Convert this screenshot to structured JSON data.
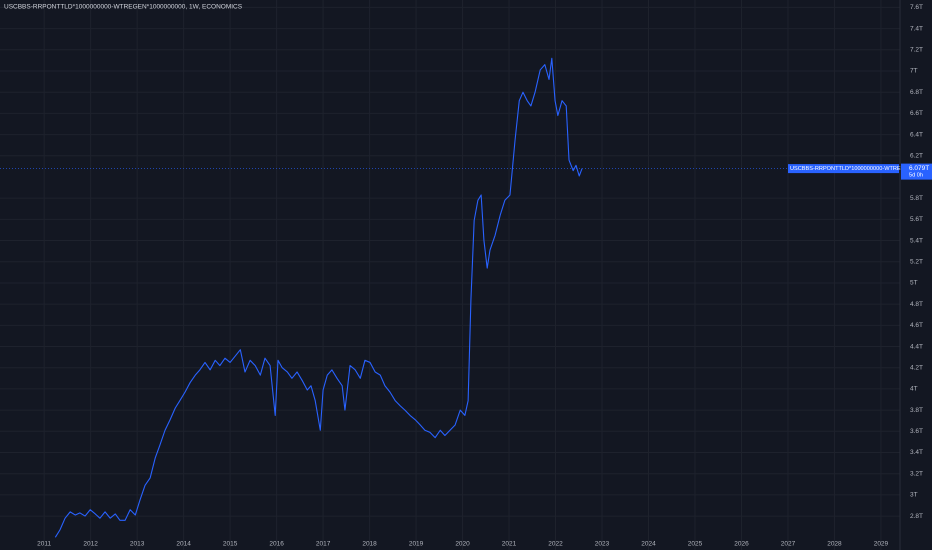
{
  "chart_data": {
    "type": "line",
    "title": "USCBBS-RRPONTTLD*1000000000-WTREGEN*1000000000, 1W, ECONOMICS",
    "xlim": [
      2010.05,
      2029.41
    ],
    "xticks": [
      2011,
      2012,
      2013,
      2014,
      2015,
      2016,
      2017,
      2018,
      2019,
      2020,
      2021,
      2022,
      2023,
      2024,
      2025,
      2026,
      2027,
      2028,
      2029
    ],
    "ylim": [
      2.48,
      7.67
    ],
    "yticks": [
      {
        "value": 2.8,
        "label": "2.8T"
      },
      {
        "value": 3,
        "label": "3T"
      },
      {
        "value": 3.2,
        "label": "3.2T"
      },
      {
        "value": 3.4,
        "label": "3.4T"
      },
      {
        "value": 3.6,
        "label": "3.6T"
      },
      {
        "value": 3.8,
        "label": "3.8T"
      },
      {
        "value": 4,
        "label": "4T"
      },
      {
        "value": 4.2,
        "label": "4.2T"
      },
      {
        "value": 4.4,
        "label": "4.4T"
      },
      {
        "value": 4.6,
        "label": "4.6T"
      },
      {
        "value": 4.8,
        "label": "4.8T"
      },
      {
        "value": 5,
        "label": "5T"
      },
      {
        "value": 5.2,
        "label": "5.2T"
      },
      {
        "value": 5.4,
        "label": "5.4T"
      },
      {
        "value": 5.6,
        "label": "5.6T"
      },
      {
        "value": 5.8,
        "label": "5.8T"
      },
      {
        "value": 6.2,
        "label": "6.2T"
      },
      {
        "value": 6.4,
        "label": "6.4T"
      },
      {
        "value": 6.6,
        "label": "6.6T"
      },
      {
        "value": 6.8,
        "label": "6.8T"
      },
      {
        "value": 7,
        "label": "7T"
      },
      {
        "value": 7.2,
        "label": "7.2T"
      },
      {
        "value": 7.4,
        "label": "7.4T"
      },
      {
        "value": 7.6,
        "label": "7.6T"
      }
    ],
    "grid": true,
    "series": [
      {
        "name": "USCBBS-RRPONTTLD*1000000000-WTREGEN*1...",
        "color": "#2962ff",
        "x": [
          2011.24,
          2011.34,
          2011.45,
          2011.56,
          2011.67,
          2011.77,
          2011.88,
          2011.99,
          2012.1,
          2012.2,
          2012.31,
          2012.42,
          2012.53,
          2012.63,
          2012.74,
          2012.85,
          2012.96,
          2013.06,
          2013.17,
          2013.28,
          2013.39,
          2013.49,
          2013.6,
          2013.71,
          2013.82,
          2013.92,
          2014.03,
          2014.14,
          2014.25,
          2014.35,
          2014.46,
          2014.57,
          2014.68,
          2014.78,
          2014.89,
          2015.0,
          2015.11,
          2015.22,
          2015.32,
          2015.43,
          2015.54,
          2015.65,
          2015.75,
          2015.86,
          2015.97,
          2016.03,
          2016.12,
          2016.23,
          2016.33,
          2016.44,
          2016.55,
          2016.66,
          2016.74,
          2016.83,
          2016.94,
          2017.0,
          2017.09,
          2017.19,
          2017.3,
          2017.41,
          2017.47,
          2017.58,
          2017.69,
          2017.8,
          2017.9,
          2018.01,
          2018.12,
          2018.23,
          2018.33,
          2018.44,
          2018.55,
          2018.66,
          2018.76,
          2018.87,
          2018.98,
          2019.09,
          2019.19,
          2019.3,
          2019.41,
          2019.52,
          2019.62,
          2019.73,
          2019.84,
          2019.95,
          2020.05,
          2020.12,
          2020.18,
          2020.25,
          2020.33,
          2020.4,
          2020.46,
          2020.53,
          2020.59,
          2020.7,
          2020.81,
          2020.91,
          2021.02,
          2021.13,
          2021.22,
          2021.3,
          2021.39,
          2021.47,
          2021.56,
          2021.67,
          2021.77,
          2021.86,
          2021.92,
          2021.99,
          2022.05,
          2022.14,
          2022.23,
          2022.29,
          2022.38,
          2022.44,
          2022.51,
          2022.57
        ],
        "values": [
          2.6,
          2.67,
          2.78,
          2.84,
          2.81,
          2.83,
          2.8,
          2.86,
          2.82,
          2.78,
          2.84,
          2.78,
          2.82,
          2.76,
          2.76,
          2.86,
          2.81,
          2.95,
          3.09,
          3.16,
          3.35,
          3.47,
          3.61,
          3.71,
          3.82,
          3.89,
          3.97,
          4.06,
          4.13,
          4.18,
          4.25,
          4.18,
          4.27,
          4.22,
          4.29,
          4.25,
          4.31,
          4.37,
          4.16,
          4.27,
          4.22,
          4.13,
          4.29,
          4.22,
          3.75,
          4.27,
          4.2,
          4.16,
          4.1,
          4.16,
          4.08,
          3.99,
          4.03,
          3.89,
          3.61,
          3.99,
          4.13,
          4.18,
          4.1,
          4.03,
          3.8,
          4.22,
          4.18,
          4.1,
          4.27,
          4.25,
          4.16,
          4.13,
          4.03,
          3.97,
          3.89,
          3.84,
          3.8,
          3.75,
          3.71,
          3.66,
          3.61,
          3.59,
          3.54,
          3.61,
          3.56,
          3.61,
          3.66,
          3.8,
          3.75,
          3.89,
          4.84,
          5.59,
          5.78,
          5.83,
          5.4,
          5.14,
          5.31,
          5.45,
          5.64,
          5.78,
          5.83,
          6.35,
          6.72,
          6.8,
          6.72,
          6.67,
          6.8,
          7.01,
          7.06,
          6.92,
          7.12,
          6.72,
          6.58,
          6.72,
          6.67,
          6.16,
          6.06,
          6.11,
          6.01,
          6.079
        ]
      }
    ],
    "last_price": {
      "value": 6.079,
      "label": "6.079T",
      "countdown": "5d 0h"
    }
  }
}
